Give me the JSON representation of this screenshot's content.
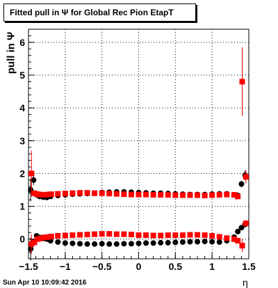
{
  "chart_data": {
    "type": "scatter",
    "title": "Fitted pull in  Ψ  for Global Rec Pion EtapT",
    "ylabel": "pull in  Ψ",
    "xlabel": "η",
    "xlim": [
      -1.5,
      1.5
    ],
    "ylim": [
      -0.6,
      6.4
    ],
    "grid": true,
    "x_ticks": [
      -1.5,
      -1,
      -0.5,
      0,
      0.5,
      1,
      1.5
    ],
    "x_tick_labels": [
      "−1.5",
      "−1",
      "−0.5",
      "0",
      "0.5",
      "1",
      "1.5"
    ],
    "y_ticks": [
      0,
      1,
      2,
      3,
      4,
      5,
      6
    ],
    "y_tick_labels": [
      "0",
      "1",
      "2",
      "3",
      "4",
      "5",
      "6"
    ],
    "series": [
      {
        "color": "#000000",
        "marker": "circle",
        "x": [
          -1.47,
          -1.43,
          -1.39,
          -1.35,
          -1.3,
          -1.25,
          -1.2,
          -1.1,
          -1.0,
          -0.9,
          -0.8,
          -0.7,
          -0.6,
          -0.5,
          -0.4,
          -0.3,
          -0.2,
          -0.1,
          0.0,
          0.1,
          0.2,
          0.3,
          0.4,
          0.5,
          0.6,
          0.7,
          0.8,
          0.9,
          1.0,
          1.1,
          1.2,
          1.3,
          1.35,
          1.4,
          1.45
        ],
        "y": [
          -0.3,
          -0.08,
          0.1,
          0.05,
          0.02,
          0.0,
          -0.05,
          -0.09,
          -0.12,
          -0.13,
          -0.14,
          -0.15,
          -0.15,
          -0.14,
          -0.15,
          -0.15,
          -0.14,
          -0.14,
          -0.13,
          -0.12,
          -0.12,
          -0.11,
          -0.11,
          -0.1,
          -0.09,
          -0.08,
          -0.08,
          -0.07,
          -0.08,
          -0.09,
          -0.05,
          0.06,
          0.23,
          0.35,
          0.45
        ],
        "yerr": [
          0.35,
          0.08,
          0.05,
          0.03,
          0.02,
          0.02,
          0.02,
          0.02,
          0.02,
          0.02,
          0.02,
          0.02,
          0.02,
          0.02,
          0.02,
          0.02,
          0.02,
          0.02,
          0.02,
          0.02,
          0.02,
          0.02,
          0.02,
          0.02,
          0.02,
          0.02,
          0.02,
          0.02,
          0.02,
          0.02,
          0.02,
          0.03,
          0.05,
          0.06,
          0.1
        ]
      },
      {
        "color": "#000000",
        "marker": "circle",
        "x": [
          -1.47,
          -1.43,
          -1.39,
          -1.35,
          -1.3,
          -1.25,
          -1.2,
          -1.1,
          -1.0,
          -0.9,
          -0.8,
          -0.7,
          -0.6,
          -0.5,
          -0.4,
          -0.3,
          -0.2,
          -0.1,
          0.0,
          0.1,
          0.2,
          0.3,
          0.4,
          0.5,
          0.6,
          0.7,
          0.8,
          0.9,
          1.0,
          1.1,
          1.2,
          1.3,
          1.35,
          1.4,
          1.45
        ],
        "y": [
          1.5,
          1.8,
          1.35,
          1.3,
          1.28,
          1.27,
          1.3,
          1.33,
          1.35,
          1.37,
          1.38,
          1.39,
          1.4,
          1.42,
          1.43,
          1.44,
          1.44,
          1.43,
          1.42,
          1.41,
          1.4,
          1.4,
          1.39,
          1.38,
          1.37,
          1.36,
          1.36,
          1.36,
          1.37,
          1.38,
          1.38,
          1.35,
          1.33,
          1.68,
          1.95
        ],
        "yerr": [
          0.35,
          0.15,
          0.05,
          0.03,
          0.02,
          0.02,
          0.02,
          0.02,
          0.02,
          0.02,
          0.02,
          0.02,
          0.02,
          0.02,
          0.02,
          0.02,
          0.02,
          0.02,
          0.02,
          0.02,
          0.02,
          0.02,
          0.02,
          0.02,
          0.02,
          0.02,
          0.02,
          0.02,
          0.02,
          0.02,
          0.02,
          0.03,
          0.05,
          0.1,
          0.15
        ]
      },
      {
        "color": "#ff0000",
        "marker": "square",
        "x": [
          -1.46,
          -1.42,
          -1.38,
          -1.34,
          -1.29,
          -1.24,
          -1.19,
          -1.1,
          -1.0,
          -0.9,
          -0.8,
          -0.7,
          -0.6,
          -0.5,
          -0.4,
          -0.3,
          -0.2,
          -0.1,
          0.0,
          0.1,
          0.2,
          0.3,
          0.4,
          0.5,
          0.6,
          0.7,
          0.8,
          0.9,
          1.0,
          1.1,
          1.2,
          1.3,
          1.35,
          1.41,
          1.46
        ],
        "y": [
          -0.15,
          -0.1,
          0.0,
          0.02,
          0.05,
          0.06,
          0.08,
          0.1,
          0.11,
          0.12,
          0.13,
          0.14,
          0.15,
          0.16,
          0.16,
          0.15,
          0.15,
          0.14,
          0.12,
          0.12,
          0.11,
          0.11,
          0.12,
          0.12,
          0.12,
          0.13,
          0.13,
          0.12,
          0.1,
          0.07,
          0.03,
          0.0,
          -0.05,
          -0.2,
          0.48
        ],
        "yerr": [
          0.3,
          0.08,
          0.05,
          0.03,
          0.02,
          0.02,
          0.02,
          0.02,
          0.02,
          0.02,
          0.02,
          0.02,
          0.02,
          0.02,
          0.02,
          0.02,
          0.02,
          0.02,
          0.02,
          0.02,
          0.02,
          0.02,
          0.02,
          0.02,
          0.02,
          0.02,
          0.02,
          0.02,
          0.02,
          0.02,
          0.02,
          0.03,
          0.05,
          0.2,
          0.1
        ]
      },
      {
        "color": "#ff0000",
        "marker": "square",
        "x": [
          -1.46,
          -1.42,
          -1.38,
          -1.34,
          -1.29,
          -1.24,
          -1.19,
          -1.1,
          -1.0,
          -0.9,
          -0.8,
          -0.7,
          -0.6,
          -0.5,
          -0.4,
          -0.3,
          -0.2,
          -0.1,
          0.0,
          0.1,
          0.2,
          0.3,
          0.4,
          0.5,
          0.6,
          0.7,
          0.8,
          0.9,
          1.0,
          1.1,
          1.2,
          1.3,
          1.35,
          1.41,
          1.46
        ],
        "y": [
          2.0,
          1.4,
          1.37,
          1.36,
          1.35,
          1.36,
          1.37,
          1.38,
          1.39,
          1.4,
          1.41,
          1.41,
          1.4,
          1.4,
          1.39,
          1.38,
          1.37,
          1.36,
          1.36,
          1.36,
          1.35,
          1.35,
          1.35,
          1.34,
          1.34,
          1.34,
          1.34,
          1.33,
          1.34,
          1.35,
          1.36,
          1.35,
          1.3,
          4.8,
          1.9
        ],
        "yerr": [
          0.7,
          0.08,
          0.05,
          0.03,
          0.02,
          0.02,
          0.02,
          0.02,
          0.02,
          0.02,
          0.02,
          0.02,
          0.02,
          0.02,
          0.02,
          0.02,
          0.02,
          0.02,
          0.02,
          0.02,
          0.02,
          0.02,
          0.02,
          0.02,
          0.02,
          0.02,
          0.02,
          0.02,
          0.02,
          0.02,
          0.02,
          0.03,
          0.06,
          1.05,
          0.2
        ]
      }
    ]
  },
  "footer": {
    "timestamp": "Sun Apr 10 10:09:42 2016"
  }
}
